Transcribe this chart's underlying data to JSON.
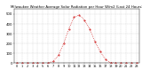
{
  "title": "Milwaukee Weather Average Solar Radiation per Hour W/m2 (Last 24 Hours)",
  "hours": [
    0,
    1,
    2,
    3,
    4,
    5,
    6,
    7,
    8,
    9,
    10,
    11,
    12,
    13,
    14,
    15,
    16,
    17,
    18,
    19,
    20,
    21,
    22,
    23
  ],
  "values": [
    0,
    0,
    0,
    0,
    0,
    0,
    0,
    20,
    80,
    200,
    350,
    470,
    490,
    440,
    350,
    220,
    120,
    40,
    5,
    0,
    0,
    0,
    0,
    0
  ],
  "line_color": "#cc0000",
  "bg_color": "#ffffff",
  "grid_color": "#bbbbbb",
  "ylim": [
    0,
    550
  ],
  "yticks": [
    0,
    100,
    200,
    300,
    400,
    500
  ],
  "ylabel_fontsize": 2.8,
  "xlabel_fontsize": 2.5,
  "title_fontsize": 2.8
}
